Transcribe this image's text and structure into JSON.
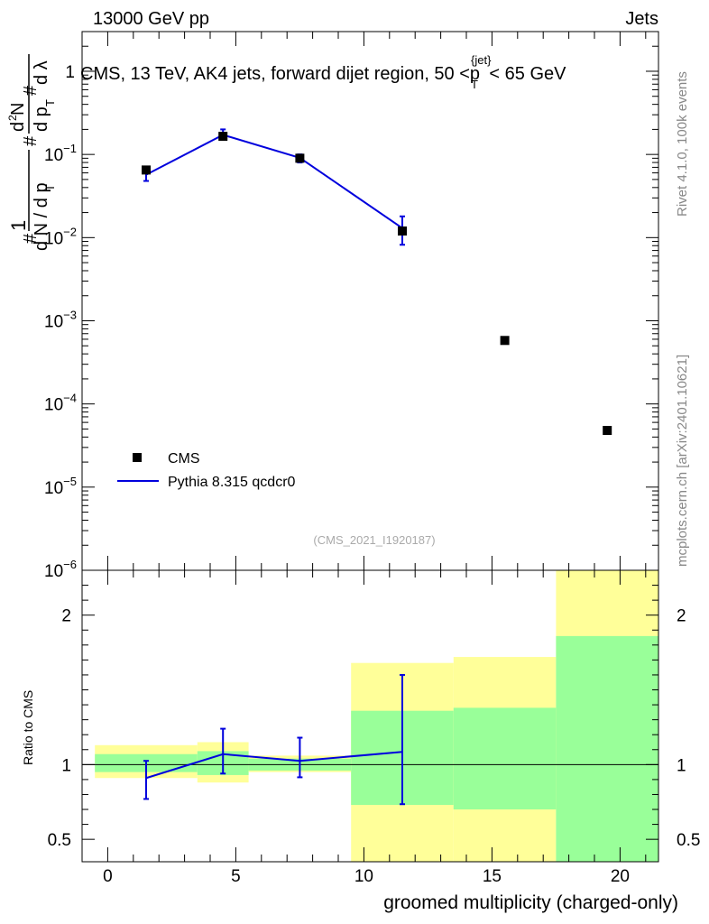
{
  "header": {
    "left": "13000 GeV pp",
    "right": "Jets"
  },
  "chart_data": [
    {
      "type": "scatter",
      "title": "CMS, 13 TeV, AK4 jets, forward dijet region, 50 <p_T^{jet}< 65 GeV",
      "title_main": "CMS, 13 TeV, AK4 jets, forward dijet region, 50 <p",
      "title_sup": "{jet}",
      "title_sub": "T",
      "title_end": "< 65 GeV",
      "ylabel": "1/(dN/dp_T) d^2N/(dp_T dλ)",
      "yscale": "log",
      "ylim": [
        1e-06,
        3
      ],
      "xlim": [
        -1,
        21.5
      ],
      "y_ticks": [
        {
          "v": 1e-06,
          "label": "10",
          "exp": "−6"
        },
        {
          "v": 1e-05,
          "label": "10",
          "exp": "−5"
        },
        {
          "v": 0.0001,
          "label": "10",
          "exp": "−4"
        },
        {
          "v": 0.001,
          "label": "10",
          "exp": "−3"
        },
        {
          "v": 0.01,
          "label": "10",
          "exp": "−2"
        },
        {
          "v": 0.1,
          "label": "10",
          "exp": "−1"
        },
        {
          "v": 1,
          "label": "1",
          "exp": ""
        }
      ],
      "series": [
        {
          "name": "CMS",
          "style": "markers",
          "color": "#000000",
          "points": [
            {
              "x": 1.5,
              "y": 0.065,
              "yerr": [
                0.065,
                0.065
              ]
            },
            {
              "x": 4.5,
              "y": 0.165,
              "yerr": [
                0.165,
                0.165
              ]
            },
            {
              "x": 7.5,
              "y": 0.09,
              "yerr": [
                0.09,
                0.09
              ]
            },
            {
              "x": 11.5,
              "y": 0.012,
              "yerr": [
                0.012,
                0.012
              ]
            },
            {
              "x": 15.5,
              "y": 0.00058,
              "yerr": [
                0.00058,
                0.00058
              ]
            },
            {
              "x": 19.5,
              "y": 4.8e-05,
              "yerr": [
                4.8e-05,
                4.8e-05
              ]
            }
          ]
        },
        {
          "name": "Pythia 8.315 qcdcr0",
          "style": "line",
          "color": "#0000dd",
          "points": [
            {
              "x": 1.5,
              "y": 0.057,
              "yerr": [
                0.048,
                0.068
              ]
            },
            {
              "x": 4.5,
              "y": 0.172,
              "yerr": [
                0.15,
                0.2
              ]
            },
            {
              "x": 7.5,
              "y": 0.091,
              "yerr": [
                0.08,
                0.1
              ]
            },
            {
              "x": 11.5,
              "y": 0.013,
              "yerr": [
                0.0082,
                0.018
              ]
            }
          ]
        }
      ],
      "legend": {
        "position": "bottom-left",
        "entries": [
          "CMS",
          "Pythia 8.315 qcdcr0"
        ]
      },
      "annotation": "(CMS_2021_I1920187)",
      "side_note_1": "Rivet 4.1.0,  100k events",
      "side_note_2": "mcplots.cern.ch [arXiv:2401.10621]"
    },
    {
      "type": "area",
      "ylabel": "Ratio to CMS",
      "xlabel": "groomed multiplicity (charged-only)",
      "ylim": [
        0.35,
        2.3
      ],
      "xlim": [
        -1,
        21.5
      ],
      "x_ticks": [
        0,
        5,
        10,
        15,
        20
      ],
      "y_ticks": [
        0.5,
        1,
        2
      ],
      "bins": [
        {
          "lo": -0.5,
          "hi": 3.5,
          "stat": [
            0.95,
            1.07
          ],
          "total": [
            0.91,
            1.13
          ]
        },
        {
          "lo": 3.5,
          "hi": 5.5,
          "stat": [
            0.93,
            1.09
          ],
          "total": [
            0.88,
            1.15
          ]
        },
        {
          "lo": 5.5,
          "hi": 9.5,
          "stat": [
            0.96,
            1.04
          ],
          "total": [
            0.95,
            1.06
          ]
        },
        {
          "lo": 9.5,
          "hi": 13.5,
          "stat": [
            0.73,
            1.36
          ],
          "total": [
            0.3,
            1.68
          ]
        },
        {
          "lo": 13.5,
          "hi": 17.5,
          "stat": [
            0.7,
            1.38
          ],
          "total": [
            0.3,
            1.72
          ]
        },
        {
          "lo": 17.5,
          "hi": 21.5,
          "stat": [
            0.3,
            1.86
          ],
          "total": [
            0.3,
            2.4
          ]
        }
      ],
      "ratio_series": {
        "name": "Pythia 8.315 qcdcr0",
        "color": "#0000dd",
        "points": [
          {
            "x": 1.5,
            "y": 0.91,
            "err": [
              0.77,
              1.025
            ]
          },
          {
            "x": 4.5,
            "y": 1.07,
            "err": [
              0.94,
              1.24
            ]
          },
          {
            "x": 7.5,
            "y": 1.025,
            "err": [
              0.915,
              1.18
            ]
          },
          {
            "x": 11.5,
            "y": 1.085,
            "err": [
              0.735,
              1.6
            ]
          }
        ]
      }
    }
  ],
  "colors": {
    "stat_band": "#99ff99",
    "total_band": "#ffff99",
    "mc_line": "#0000dd",
    "data_marker": "#000000"
  }
}
